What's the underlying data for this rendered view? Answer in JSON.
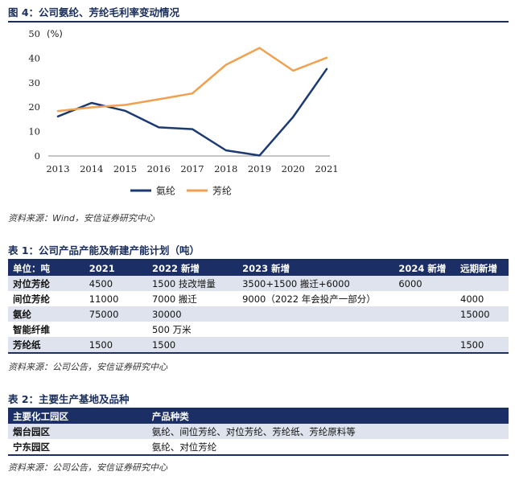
{
  "fig4": {
    "title": "图 4：公司氨纶、芳纶毛利率变动情况",
    "source": "资料来源：Wind，安信证券研究中心"
  },
  "chart_data": {
    "type": "line",
    "unit_label": "(%)",
    "x": [
      "2013",
      "2014",
      "2015",
      "2016",
      "2017",
      "2018",
      "2019",
      "2020",
      "2021"
    ],
    "ylim": [
      0,
      50
    ],
    "yticks": [
      0,
      10,
      20,
      30,
      40,
      50
    ],
    "series": [
      {
        "name": "氨纶",
        "color": "#1b3a73",
        "values": [
          16.2,
          21.7,
          18.5,
          11.7,
          11.0,
          2.3,
          0.2,
          16.0,
          35.6
        ]
      },
      {
        "name": "芳纶",
        "color": "#f0a050",
        "values": [
          18.4,
          19.9,
          20.9,
          23.2,
          25.6,
          37.3,
          44.2,
          34.9,
          40.2
        ]
      }
    ],
    "legend_position": "bottom",
    "grid": false
  },
  "table1": {
    "title": "表 1：公司产品产能及新建产能计划（吨）",
    "headers": [
      "单位：吨",
      "2021",
      "2022 新增",
      "2023 新增",
      "2024 新增",
      "远期新增"
    ],
    "rows": [
      [
        "对位芳纶",
        "4500",
        "1500 技改增量",
        "3500+1500 搬迁+6000",
        "6000",
        ""
      ],
      [
        "间位芳纶",
        "11000",
        "7000 搬迁",
        "9000（2022 年会投产一部分）",
        "",
        "4000"
      ],
      [
        "氨纶",
        "75000",
        "30000",
        "",
        "",
        "15000"
      ],
      [
        "智能纤维",
        "",
        "500 万米",
        "",
        "",
        ""
      ],
      [
        "芳纶纸",
        "1500",
        "1500",
        "",
        "",
        "1500"
      ]
    ],
    "source": "资料来源：公司公告，安信证券研究中心"
  },
  "table2": {
    "title": "表 2：主要生产基地及品种",
    "headers": [
      "主要化工园区",
      "产品种类"
    ],
    "rows": [
      [
        "烟台园区",
        "氨纶、间位芳纶、对位芳纶、芳纶纸、芳纶原料等"
      ],
      [
        "宁东园区",
        "氨纶、对位芳纶"
      ]
    ],
    "source": "资料来源：公司公告，安信证券研究中心"
  }
}
